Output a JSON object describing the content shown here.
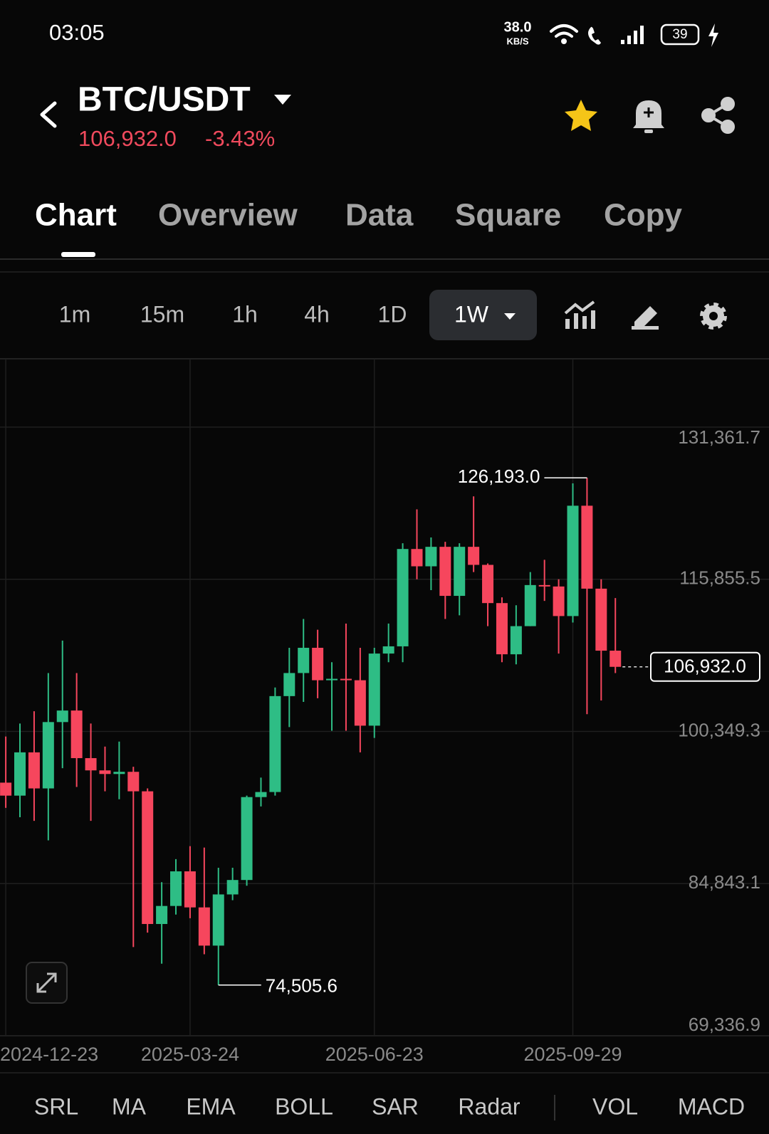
{
  "status_bar": {
    "time": "03:05",
    "speed": "38.0",
    "speed_unit": "KB/S",
    "battery": "39"
  },
  "header": {
    "pair": "BTC/USDT",
    "price": "106,932.0",
    "change": "-3.43%"
  },
  "tabs": [
    "Chart",
    "Overview",
    "Data",
    "Square",
    "Copy"
  ],
  "intervals": [
    "1m",
    "15m",
    "1h",
    "4h",
    "1D",
    "1W"
  ],
  "indicators": [
    "SRL",
    "MA",
    "EMA",
    "BOLL",
    "SAR",
    "Radar",
    "VOL",
    "MACD"
  ],
  "chart_data": {
    "type": "candlestick",
    "categories": [
      "2024-12-23",
      null,
      null,
      null,
      null,
      null,
      null,
      null,
      null,
      null,
      null,
      null,
      null,
      "2025-03-24",
      null,
      null,
      null,
      null,
      null,
      null,
      null,
      null,
      null,
      null,
      null,
      null,
      "2025-06-23",
      null,
      null,
      null,
      null,
      null,
      null,
      null,
      null,
      null,
      null,
      null,
      null,
      null,
      "2025-09-29",
      null,
      null,
      null
    ],
    "open": [
      95131,
      93808,
      98218,
      94543,
      101305,
      102480,
      97630,
      96381,
      96013,
      96234,
      94249,
      80727,
      82565,
      86092,
      82418,
      78523,
      83740,
      85210,
      93661,
      94176,
      103950,
      106302,
      108874,
      105567,
      105714,
      105567,
      100937,
      108286,
      109021,
      118942,
      117178,
      119163,
      114165,
      119163,
      117325,
      113430,
      108212,
      111079,
      115267,
      115121,
      112107,
      123352,
      114900,
      108580
    ],
    "high": [
      99835,
      101158,
      102407,
      106302,
      109609,
      106302,
      101158,
      98806,
      99320,
      96748,
      94543,
      84990,
      87341,
      88664,
      88517,
      86459,
      86459,
      93808,
      95646,
      104832,
      108874,
      111813,
      110711,
      107404,
      111344,
      108874,
      108874,
      111344,
      119530,
      122984,
      120118,
      119677,
      119530,
      124307,
      117472,
      114018,
      113210,
      116590,
      117840,
      115856,
      125630,
      126193.0,
      115856,
      113945
    ],
    "low": [
      92559,
      91604,
      91236,
      89252,
      96601,
      94690,
      91236,
      94249,
      93441,
      78375,
      79845,
      76685,
      81683,
      81315,
      77641,
      74505.6,
      83152,
      84622,
      92706,
      93808,
      100790,
      103362,
      103730,
      100423,
      100423,
      98218,
      99688,
      107404,
      107404,
      115856,
      114753,
      111813,
      112181,
      116590,
      111079,
      107404,
      107184,
      111079,
      113651,
      108286,
      111446,
      102113,
      103509,
      106302
    ],
    "close": [
      93808,
      98218,
      94543,
      101305,
      102480,
      97630,
      96381,
      96013,
      96234,
      94249,
      80727,
      82565,
      86092,
      82418,
      78523,
      83740,
      85210,
      93661,
      94176,
      103950,
      106302,
      108874,
      105567,
      105714,
      105567,
      100937,
      108286,
      109021,
      118942,
      117178,
      119163,
      114165,
      119163,
      117325,
      113430,
      108212,
      111079,
      115267,
      115121,
      112107,
      123352,
      114900,
      108580,
      106932.0
    ],
    "up_color": "#2ebd85",
    "down_color": "#f6465d",
    "ylim": [
      69336.9,
      131361.7
    ],
    "yticks": [
      {
        "value": 69336.9,
        "label": "69,336.9"
      },
      {
        "value": 84843.1,
        "label": "84,843.1"
      },
      {
        "value": 100349.3,
        "label": "100,349.3"
      },
      {
        "value": 115855.5,
        "label": "115,855.5"
      },
      {
        "value": 131361.7,
        "label": "131,361.7"
      }
    ],
    "grid": true,
    "high_label": "126,193.0",
    "low_label": "74,505.6",
    "last_label": "106,932.0"
  }
}
